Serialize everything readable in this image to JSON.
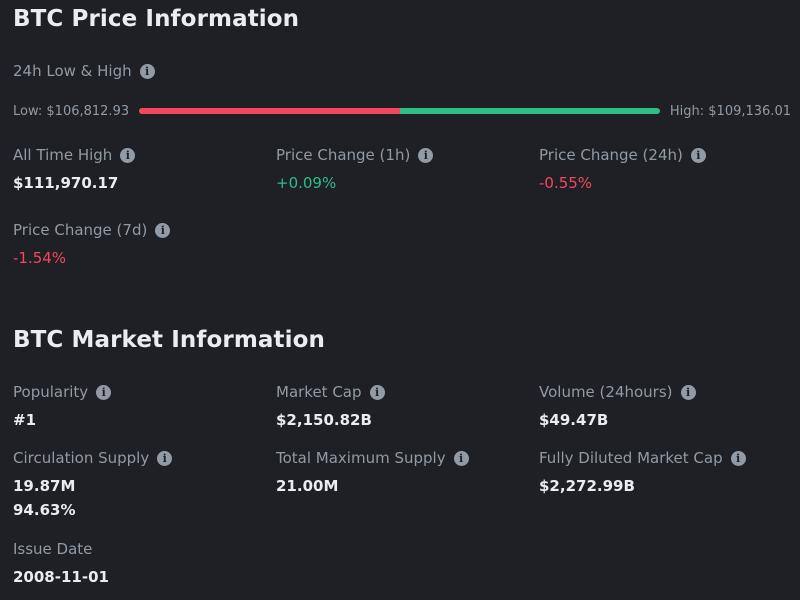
{
  "price_info": {
    "title": "BTC Price Information",
    "range": {
      "label": "24h Low & High",
      "low_text": "Low: $106,812.93",
      "high_text": "High: $109,136.01",
      "position_fraction": 0.5
    },
    "ath": {
      "label": "All Time High",
      "value": "$111,970.17"
    },
    "change_1h": {
      "label": "Price Change (1h)",
      "value": "+0.09%"
    },
    "change_24h": {
      "label": "Price Change (24h)",
      "value": "-0.55%"
    },
    "change_7d": {
      "label": "Price Change (7d)",
      "value": "-1.54%"
    }
  },
  "market_info": {
    "title": "BTC Market Information",
    "popularity": {
      "label": "Popularity",
      "value": "#1"
    },
    "market_cap": {
      "label": "Market Cap",
      "value": "$2,150.82B"
    },
    "volume": {
      "label": "Volume (24hours)",
      "value": "$49.47B"
    },
    "circulation": {
      "label": "Circulation Supply",
      "value": "19.87M",
      "percent": "94.63%"
    },
    "max_supply": {
      "label": "Total Maximum Supply",
      "value": "21.00M"
    },
    "fdv": {
      "label": "Fully Diluted Market Cap",
      "value": "$2,272.99B"
    },
    "issue_date": {
      "label": "Issue Date",
      "value": "2008-11-01"
    }
  },
  "icons": {
    "info": "info-circle-icon",
    "info_glyph": "i"
  },
  "colors": {
    "up": "#2ebd85",
    "down": "#f6465d",
    "muted": "#929aa5",
    "background": "#1e2026"
  }
}
